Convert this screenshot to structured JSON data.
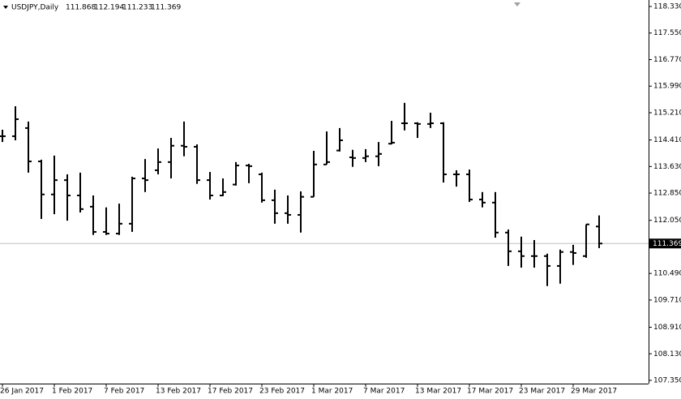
{
  "chart_data": {
    "type": "ohlc",
    "title": "USDJPY,Daily",
    "categories": [
      "26 Jan 2017",
      null,
      null,
      null,
      "1 Feb 2017",
      null,
      null,
      null,
      "7 Feb 2017",
      null,
      null,
      null,
      "13 Feb 2017",
      null,
      null,
      null,
      "17 Feb 2017",
      null,
      null,
      null,
      "23 Feb 2017",
      null,
      null,
      null,
      "1 Mar 2017",
      null,
      null,
      null,
      "7 Mar 2017",
      null,
      null,
      null,
      "13 Mar 2017",
      null,
      null,
      null,
      "17 Mar 2017",
      null,
      null,
      null,
      "23 Mar 2017",
      null,
      null,
      null,
      "29 Mar 2017",
      null,
      null
    ],
    "open": [
      114.52,
      114.52,
      114.76,
      113.78,
      112.81,
      113.23,
      112.78,
      112.45,
      111.71,
      111.66,
      111.95,
      113.28,
      113.52,
      113.76,
      114.24,
      114.21,
      113.23,
      112.78,
      113.1,
      113.66,
      113.4,
      112.64,
      112.26,
      112.21,
      112.74,
      113.69,
      114.1,
      113.9,
      113.88,
      113.93,
      114.3,
      114.9,
      114.9,
      114.88,
      114.9,
      113.4,
      113.4,
      112.66,
      112.57,
      111.69,
      111.14,
      111.0,
      111.0,
      110.71,
      111.12,
      111.0,
      111.868
    ],
    "high": [
      114.71,
      115.4,
      114.95,
      113.83,
      113.95,
      113.4,
      113.45,
      112.78,
      112.43,
      112.54,
      113.33,
      113.85,
      114.16,
      114.47,
      114.95,
      114.28,
      113.47,
      113.28,
      113.76,
      113.71,
      113.45,
      112.95,
      112.78,
      112.9,
      114.09,
      114.66,
      114.76,
      114.12,
      114.14,
      114.35,
      114.97,
      115.5,
      114.93,
      115.21,
      114.93,
      113.52,
      113.54,
      112.88,
      112.88,
      111.78,
      111.57,
      111.47,
      111.07,
      111.19,
      111.33,
      111.93,
      112.194
    ],
    "low": [
      114.35,
      114.4,
      113.45,
      112.09,
      112.23,
      112.04,
      112.28,
      111.62,
      111.62,
      111.62,
      111.71,
      112.88,
      113.4,
      113.28,
      113.93,
      113.12,
      112.66,
      112.76,
      113.07,
      113.14,
      112.57,
      111.95,
      111.95,
      111.69,
      112.74,
      113.69,
      114.07,
      113.62,
      113.76,
      113.64,
      114.28,
      114.69,
      114.47,
      114.76,
      113.16,
      113.04,
      112.59,
      112.43,
      111.54,
      110.71,
      110.66,
      110.66,
      110.12,
      110.19,
      110.74,
      110.95,
      111.233
    ],
    "close": [
      114.52,
      115.02,
      113.78,
      112.81,
      113.23,
      112.78,
      112.38,
      111.71,
      111.66,
      111.95,
      113.28,
      113.23,
      113.76,
      114.24,
      114.21,
      113.23,
      112.78,
      112.88,
      113.66,
      113.64,
      112.64,
      112.26,
      112.21,
      112.74,
      113.69,
      113.76,
      114.4,
      113.88,
      113.93,
      114.0,
      114.33,
      114.9,
      114.88,
      114.9,
      113.4,
      113.4,
      112.66,
      112.57,
      111.69,
      111.14,
      111.0,
      111.0,
      110.71,
      111.12,
      111.09,
      111.93,
      111.369
    ],
    "color": "#000000",
    "ylim": [
      107.255,
      118.52
    ],
    "yticks": [
      {
        "value": 118.33,
        "label": "118.330"
      },
      {
        "value": 117.55,
        "label": "117.550"
      },
      {
        "value": 116.77,
        "label": "116.770"
      },
      {
        "value": 115.99,
        "label": "115.990"
      },
      {
        "value": 115.21,
        "label": "115.210"
      },
      {
        "value": 114.41,
        "label": "114.410"
      },
      {
        "value": 113.63,
        "label": "113.630"
      },
      {
        "value": 112.85,
        "label": "112.850"
      },
      {
        "value": 112.05,
        "label": "112.050"
      },
      {
        "value": 110.49,
        "label": "110.490"
      },
      {
        "value": 109.71,
        "label": "109.710"
      },
      {
        "value": 108.91,
        "label": "108.910"
      },
      {
        "value": 108.13,
        "label": "108.130"
      },
      {
        "value": 107.35,
        "label": "107.350"
      }
    ],
    "grid": false
  }
}
